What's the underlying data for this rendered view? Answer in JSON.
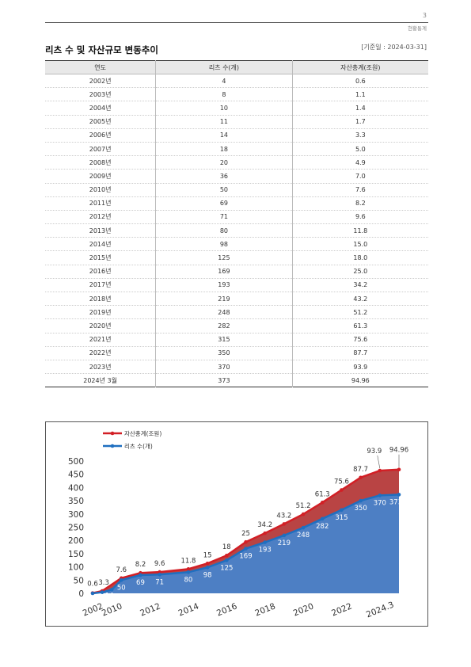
{
  "header": {
    "page_number": "3",
    "section": "현황통계"
  },
  "title": "리츠 수 및 자산규모 변동추이",
  "base_date": "[기준일 : 2024-03-31]",
  "table": {
    "headers": [
      "연도",
      "리츠 수(개)",
      "자산총계(조원)"
    ],
    "rows": [
      [
        "2002년",
        "4",
        "0.6"
      ],
      [
        "2003년",
        "8",
        "1.1"
      ],
      [
        "2004년",
        "10",
        "1.4"
      ],
      [
        "2005년",
        "11",
        "1.7"
      ],
      [
        "2006년",
        "14",
        "3.3"
      ],
      [
        "2007년",
        "18",
        "5.0"
      ],
      [
        "2008년",
        "20",
        "4.9"
      ],
      [
        "2009년",
        "36",
        "7.0"
      ],
      [
        "2010년",
        "50",
        "7.6"
      ],
      [
        "2011년",
        "69",
        "8.2"
      ],
      [
        "2012년",
        "71",
        "9.6"
      ],
      [
        "2013년",
        "80",
        "11.8"
      ],
      [
        "2014년",
        "98",
        "15.0"
      ],
      [
        "2015년",
        "125",
        "18.0"
      ],
      [
        "2016년",
        "169",
        "25.0"
      ],
      [
        "2017년",
        "193",
        "34.2"
      ],
      [
        "2018년",
        "219",
        "43.2"
      ],
      [
        "2019년",
        "248",
        "51.2"
      ],
      [
        "2020년",
        "282",
        "61.3"
      ],
      [
        "2021년",
        "315",
        "75.6"
      ],
      [
        "2022년",
        "350",
        "87.7"
      ],
      [
        "2023년",
        "370",
        "93.9"
      ],
      [
        "2024년 3월",
        "373",
        "94.96"
      ]
    ]
  },
  "chart_data": {
    "type": "area",
    "legend": [
      {
        "name": "자산총계(조원)",
        "color": "#d21f25"
      },
      {
        "name": "리츠 수(개)",
        "color": "#1f6fc0"
      }
    ],
    "legend_position": "top-left",
    "ylim": [
      0,
      500
    ],
    "yticks": [
      0,
      50,
      100,
      150,
      200,
      250,
      300,
      350,
      400,
      450,
      500
    ],
    "x_tick_labels": [
      "2002",
      "2010",
      "2012",
      "2014",
      "2016",
      "2018",
      "2020",
      "2022",
      "2024.3"
    ],
    "x_tick_index": [
      0,
      2,
      6,
      10,
      14,
      18,
      22,
      26,
      30
    ],
    "reits_points": [
      {
        "i": 0,
        "y": 0,
        "label": ""
      },
      {
        "i": 1,
        "y": 4,
        "label": ""
      },
      {
        "i": 2,
        "y": 14,
        "label": "14"
      },
      {
        "i": 3,
        "y": 50,
        "label": "50"
      },
      {
        "i": 5,
        "y": 69,
        "label": "69"
      },
      {
        "i": 7,
        "y": 71,
        "label": "71"
      },
      {
        "i": 10,
        "y": 80,
        "label": "80"
      },
      {
        "i": 12,
        "y": 98,
        "label": "98"
      },
      {
        "i": 14,
        "y": 125,
        "label": "125"
      },
      {
        "i": 16,
        "y": 169,
        "label": "169"
      },
      {
        "i": 18,
        "y": 193,
        "label": "193"
      },
      {
        "i": 20,
        "y": 219,
        "label": "219"
      },
      {
        "i": 22,
        "y": 248,
        "label": "248"
      },
      {
        "i": 24,
        "y": 282,
        "label": "282"
      },
      {
        "i": 26,
        "y": 315,
        "label": "315"
      },
      {
        "i": 28,
        "y": 350,
        "label": "350"
      },
      {
        "i": 30,
        "y": 370,
        "label": "370"
      },
      {
        "i": 32,
        "y": 373,
        "label": "373"
      }
    ],
    "asset_points": [
      {
        "i": 0,
        "y": 1,
        "label": "0.6"
      },
      {
        "i": 1,
        "y": 9,
        "label": "3.3"
      },
      {
        "i": 3,
        "y": 57.6,
        "label": "7.6"
      },
      {
        "i": 5,
        "y": 77.2,
        "label": "8.2"
      },
      {
        "i": 7,
        "y": 80.6,
        "label": "9.6"
      },
      {
        "i": 10,
        "y": 91.8,
        "label": "11.8"
      },
      {
        "i": 12,
        "y": 113,
        "label": "15"
      },
      {
        "i": 14,
        "y": 143,
        "label": "18"
      },
      {
        "i": 16,
        "y": 194,
        "label": "25"
      },
      {
        "i": 18,
        "y": 227.2,
        "label": "34.2"
      },
      {
        "i": 20,
        "y": 262.2,
        "label": "43.2"
      },
      {
        "i": 22,
        "y": 299.2,
        "label": "51.2"
      },
      {
        "i": 24,
        "y": 343.3,
        "label": "61.3"
      },
      {
        "i": 26,
        "y": 390.6,
        "label": "75.6"
      },
      {
        "i": 28,
        "y": 437.7,
        "label": "87.7"
      },
      {
        "i": 30,
        "y": 463.9,
        "label": "93.9"
      },
      {
        "i": 32,
        "y": 467.96,
        "label": "94.96"
      }
    ]
  }
}
